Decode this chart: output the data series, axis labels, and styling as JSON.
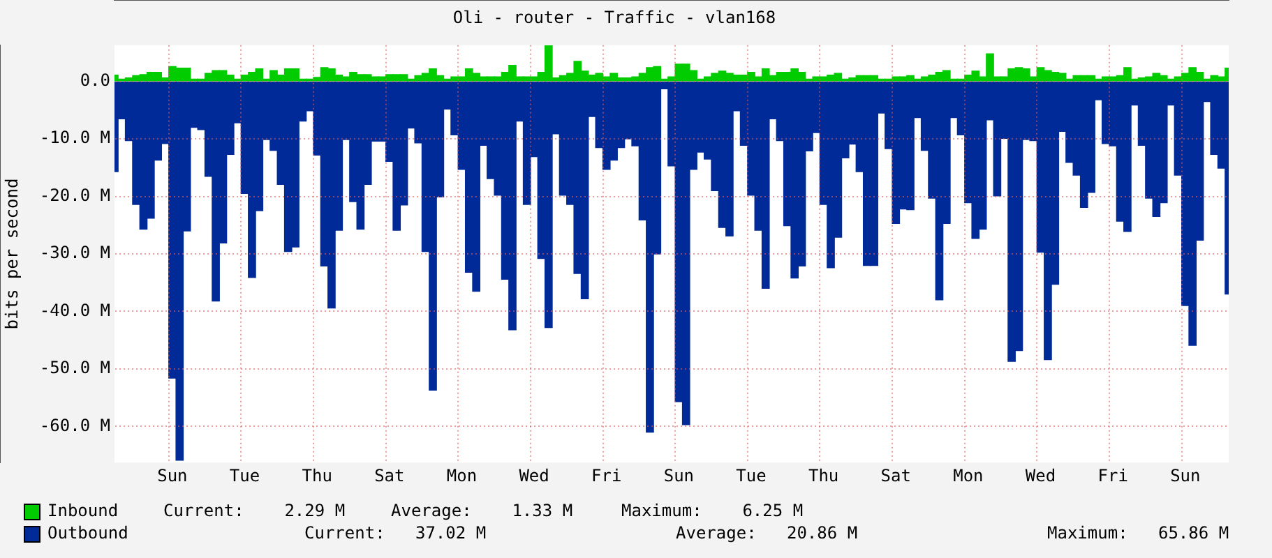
{
  "chart_data": {
    "type": "bar",
    "stacked": true,
    "title": "Oli - router - Traffic - vlan168",
    "ylabel": "bits per second",
    "categories": [
      null,
      null,
      null,
      null,
      null,
      null,
      null,
      null,
      "Sun",
      null,
      null,
      null,
      null,
      null,
      null,
      null,
      null,
      null,
      "Tue",
      null,
      null,
      null,
      null,
      null,
      null,
      null,
      null,
      null,
      "Thu",
      null,
      null,
      null,
      null,
      null,
      null,
      null,
      null,
      null,
      "Sat",
      null,
      null,
      null,
      null,
      null,
      null,
      null,
      null,
      null,
      "Mon",
      null,
      null,
      null,
      null,
      null,
      null,
      null,
      null,
      null,
      "Wed",
      null,
      null,
      null,
      null,
      null,
      null,
      null,
      null,
      null,
      "Fri",
      null,
      null,
      null,
      null,
      null,
      null,
      null,
      null,
      null,
      "Sun",
      null,
      null,
      null,
      null,
      null,
      null,
      null,
      null,
      null,
      "Tue",
      null,
      null,
      null,
      null,
      null,
      null,
      null,
      null,
      null,
      "Thu",
      null,
      null,
      null,
      null,
      null,
      null,
      null,
      null,
      null,
      "Sat",
      null,
      null,
      null,
      null,
      null,
      null,
      null,
      null,
      null,
      "Mon",
      null,
      null,
      null,
      null,
      null,
      null,
      null,
      null,
      null,
      "Wed",
      null,
      null,
      null,
      null,
      null,
      null,
      null,
      null,
      null,
      "Fri",
      null,
      null,
      null,
      null,
      null,
      null,
      null,
      null,
      null,
      "Sun",
      null,
      null,
      null,
      null,
      null,
      null
    ],
    "series": [
      {
        "name": "Inbound",
        "color": "#00cc00",
        "values": [
          1.1,
          0.4,
          0.6,
          1.0,
          1.2,
          1.6,
          1.6,
          0.6,
          2.6,
          2.3,
          2.3,
          0.4,
          0.4,
          1.4,
          1.9,
          1.9,
          1.1,
          0.4,
          1.1,
          1.6,
          2.2,
          0.4,
          1.9,
          1.1,
          2.2,
          2.2,
          0.4,
          0.4,
          0.7,
          2.4,
          2.2,
          1.1,
          0.8,
          1.6,
          1.2,
          1.2,
          0.8,
          0.8,
          1.2,
          1.2,
          1.2,
          0.4,
          1.0,
          1.4,
          2.2,
          1.0,
          0.4,
          0.8,
          0.8,
          2.2,
          1.4,
          0.8,
          0.8,
          0.8,
          1.6,
          2.8,
          0.8,
          0.8,
          0.8,
          1.6,
          6.2,
          0.6,
          1.0,
          1.4,
          3.5,
          1.8,
          1.1,
          1.4,
          0.8,
          1.4,
          0.6,
          0.6,
          0.8,
          1.4,
          2.4,
          2.6,
          0.4,
          0.8,
          3.0,
          3.0,
          1.9,
          0.4,
          0.8,
          1.4,
          1.8,
          1.4,
          1.1,
          1.1,
          1.6,
          0.8,
          2.2,
          1.0,
          1.6,
          1.6,
          2.2,
          1.6,
          0.4,
          0.8,
          0.8,
          1.1,
          1.4,
          0.4,
          0.6,
          1.0,
          1.0,
          1.0,
          0.4,
          0.4,
          0.8,
          0.8,
          1.0,
          0.4,
          0.8,
          1.1,
          1.6,
          1.9,
          0.4,
          0.4,
          1.1,
          1.8,
          0.8,
          4.8,
          0.8,
          0.8,
          2.2,
          2.4,
          2.2,
          0.8,
          2.4,
          1.9,
          1.6,
          1.4,
          0.4,
          1.0,
          1.0,
          1.0,
          0.4,
          0.8,
          0.8,
          1.0,
          2.4,
          0.4,
          0.6,
          0.8,
          1.4,
          1.0,
          0.4,
          0.8,
          1.4,
          2.4,
          1.6,
          0.4,
          1.0,
          0.8,
          2.3
        ]
      },
      {
        "name": "Outbound",
        "color": "#002a97",
        "values": [
          -15.7,
          -6.5,
          -10.3,
          -21.4,
          -25.7,
          -23.8,
          -13.7,
          -10.8,
          -51.6,
          -65.9,
          -26.0,
          -8.0,
          -8.4,
          -16.5,
          -38.2,
          -28.1,
          -12.7,
          -7.2,
          -19.5,
          -34.1,
          -22.5,
          -10.1,
          -12.0,
          -17.9,
          -29.6,
          -28.8,
          -6.9,
          -5.1,
          -12.8,
          -32.1,
          -39.4,
          -25.9,
          -10.1,
          -20.9,
          -25.7,
          -17.9,
          -10.4,
          -10.4,
          -13.9,
          -25.9,
          -21.5,
          -8.1,
          -10.7,
          -29.6,
          -53.7,
          -20.1,
          -4.8,
          -9.3,
          -15.3,
          -33.2,
          -36.5,
          -11.1,
          -16.9,
          -19.8,
          -34.4,
          -43.2,
          -6.9,
          -21.4,
          -13.1,
          -30.8,
          -42.8,
          -9.1,
          -19.8,
          -21.4,
          -33.4,
          -37.8,
          -6.1,
          -11.5,
          -15.3,
          -13.7,
          -11.5,
          -10.0,
          -11.2,
          -24.1,
          -61.0,
          -30.0,
          -1.3,
          -14.7,
          -55.7,
          -59.7,
          -15.3,
          -12.3,
          -13.5,
          -19.0,
          -25.4,
          -26.9,
          -5.1,
          -11.1,
          -19.8,
          -25.9,
          -36.0,
          -6.5,
          -10.3,
          -25.1,
          -34.2,
          -32.1,
          -12.1,
          -8.9,
          -21.4,
          -32.4,
          -27.1,
          -13.3,
          -10.9,
          -15.7,
          -32.0,
          -32.0,
          -5.5,
          -11.7,
          -24.7,
          -22.2,
          -22.3,
          -6.3,
          -12.0,
          -20.3,
          -38.0,
          -24.7,
          -6.3,
          -9.3,
          -21.1,
          -27.3,
          -25.7,
          -6.7,
          -19.9,
          -9.9,
          -48.7,
          -46.8,
          -10.1,
          -10.3,
          -29.7,
          -48.4,
          -35.3,
          -8.7,
          -14.1,
          -16.3,
          -21.9,
          -19.3,
          -3.2,
          -10.8,
          -11.2,
          -24.3,
          -26.1,
          -4.1,
          -11.1,
          -20.3,
          -23.5,
          -21.1,
          -4.1,
          -16.3,
          -39.0,
          -45.9,
          -27.6,
          -3.5,
          -12.7,
          -15.1,
          -37.0
        ]
      }
    ],
    "ylim": [
      -66.3,
      6.3
    ],
    "yticks": [
      {
        "value": 0,
        "label": "0.0"
      },
      {
        "value": -10,
        "label": "-10.0 M"
      },
      {
        "value": -20,
        "label": "-20.0 M"
      },
      {
        "value": -30,
        "label": "-30.0 M"
      },
      {
        "value": -40,
        "label": "-40.0 M"
      },
      {
        "value": -50,
        "label": "-50.0 M"
      },
      {
        "value": -60,
        "label": "-60.0 M"
      }
    ],
    "grid": true,
    "legend": "bottom",
    "annotations": [
      "Current:    2.29 M",
      "Average:    1.33 M",
      "Maximum:    6.25 M",
      "Current:   37.02 M",
      "Average:   20.86 M",
      "Maximum:   65.86 M"
    ]
  }
}
